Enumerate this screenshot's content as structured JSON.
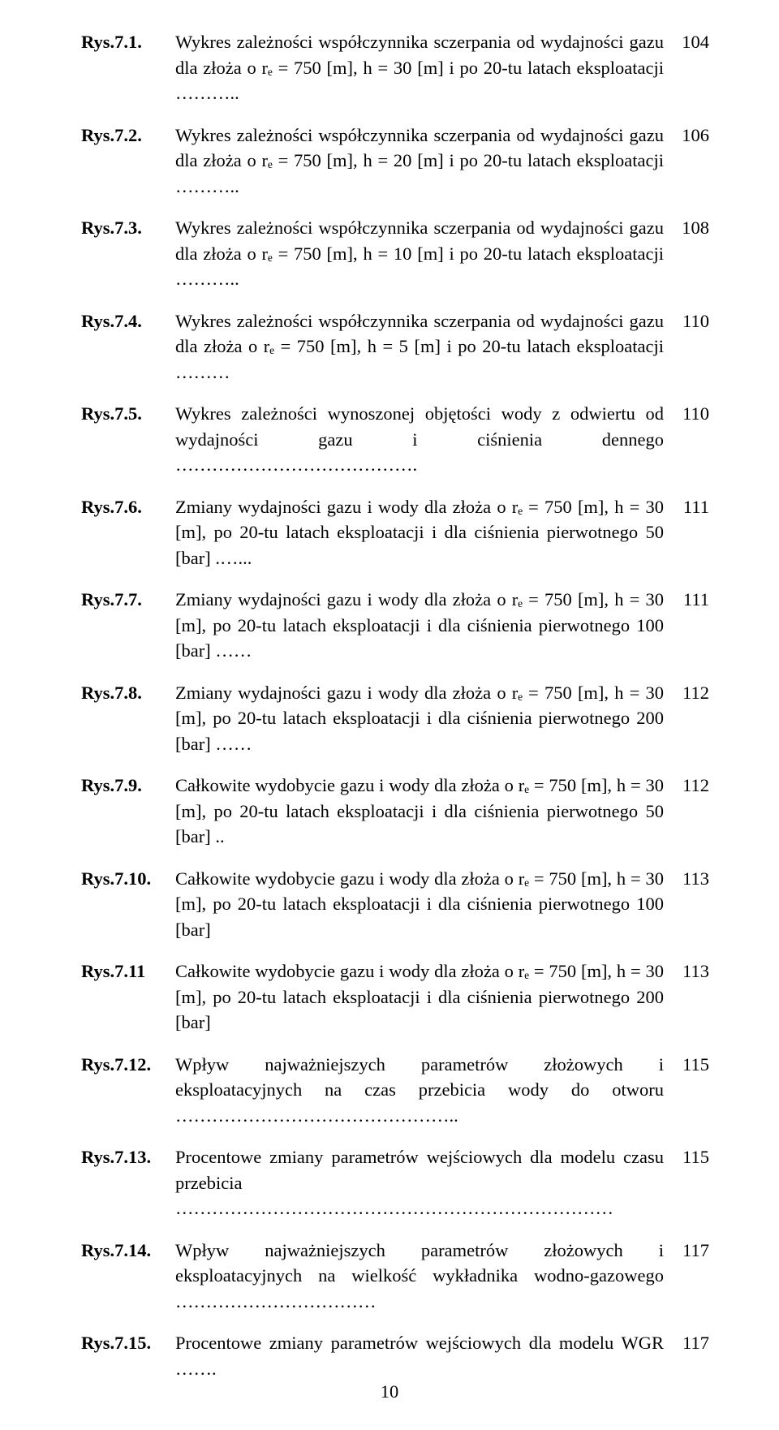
{
  "page_number": "10",
  "text_color": "#000000",
  "background_color": "#ffffff",
  "font_family": "Times New Roman",
  "body_fontsize_pt": 17,
  "entries": [
    {
      "label": "Rys.7.1.",
      "desc": "Wykres zależności współczynnika sczerpania od wydajności gazu dla złoża o rₑ = 750 [m], h = 30 [m] i po 20-tu latach eksploatacji ………..",
      "page": "104"
    },
    {
      "label": "Rys.7.2.",
      "desc": "Wykres zależności współczynnika sczerpania od wydajności gazu dla złoża o rₑ = 750 [m], h = 20 [m] i po 20-tu latach eksploatacji ………..",
      "page": "106"
    },
    {
      "label": "Rys.7.3.",
      "desc": "Wykres zależności współczynnika sczerpania od wydajności gazu dla złoża o rₑ = 750 [m], h = 10 [m] i po 20-tu latach eksploatacji ………..",
      "page": "108"
    },
    {
      "label": "Rys.7.4.",
      "desc": "Wykres zależności współczynnika sczerpania od wydajności gazu dla złoża o rₑ = 750 [m], h = 5 [m] i po 20-tu latach eksploatacji ………",
      "page": "110"
    },
    {
      "label": "Rys.7.5.",
      "desc": "Wykres zależności wynoszonej objętości wody z odwiertu od wydajności gazu i ciśnienia dennego ………………………………….",
      "page": "110"
    },
    {
      "label": "Rys.7.6.",
      "desc": "Zmiany wydajności gazu i wody dla złoża o rₑ = 750 [m], h = 30 [m], po 20-tu latach eksploatacji i dla ciśnienia pierwotnego 50 [bar] .…...",
      "page": "111"
    },
    {
      "label": "Rys.7.7.",
      "desc": "Zmiany wydajności gazu i wody dla złoża o rₑ = 750 [m], h = 30 [m], po 20-tu latach eksploatacji i dla ciśnienia pierwotnego 100 [bar] ……",
      "page": "111"
    },
    {
      "label": "Rys.7.8.",
      "desc": "Zmiany wydajności gazu i wody dla złoża o rₑ = 750 [m], h = 30 [m], po 20-tu latach eksploatacji i dla ciśnienia pierwotnego 200 [bar] ……",
      "page": "112"
    },
    {
      "label": "Rys.7.9.",
      "desc": "Całkowite wydobycie gazu i wody dla złoża o rₑ = 750 [m], h = 30 [m], po 20-tu latach eksploatacji i dla ciśnienia pierwotnego 50 [bar] ..",
      "page": "112"
    },
    {
      "label": "Rys.7.10.",
      "desc": "Całkowite wydobycie gazu i wody dla złoża o rₑ = 750 [m], h = 30 [m], po 20-tu latach eksploatacji i dla ciśnienia pierwotnego 100 [bar]",
      "page": "113"
    },
    {
      "label": "Rys.7.11",
      "desc": "Całkowite wydobycie gazu i wody dla złoża o rₑ = 750 [m], h = 30 [m], po 20-tu latach eksploatacji i dla ciśnienia pierwotnego 200 [bar]",
      "page": "113"
    },
    {
      "label": "Rys.7.12.",
      "desc": "Wpływ najważniejszych parametrów złożowych i eksploatacyjnych na czas przebicia wody do otworu ………………………………………..",
      "page": "115"
    },
    {
      "label": "Rys.7.13.",
      "desc": "Procentowe zmiany parametrów wejściowych dla modelu czasu przebicia ………………………………………………………………",
      "page": "115"
    },
    {
      "label": "Rys.7.14.",
      "desc": "Wpływ najważniejszych parametrów złożowych i eksploatacyjnych na wielkość wykładnika wodno-gazowego ……………………………",
      "page": "117"
    },
    {
      "label": "Rys.7.15.",
      "desc": "Procentowe zmiany parametrów wejściowych dla modelu WGR …….",
      "page": "117"
    }
  ]
}
